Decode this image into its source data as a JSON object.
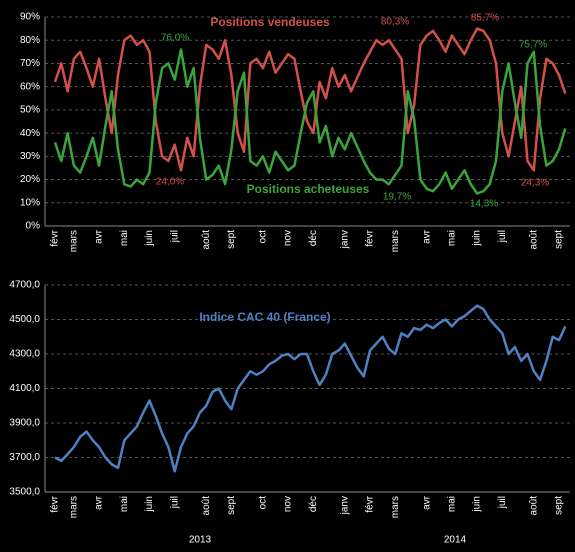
{
  "chart_data": [
    {
      "type": "line",
      "categories": [
        "févr",
        null,
        null,
        "mars",
        null,
        null,
        null,
        "avr",
        null,
        null,
        null,
        "mai",
        null,
        null,
        null,
        "juin",
        null,
        null,
        null,
        "juil",
        null,
        null,
        null,
        null,
        "août",
        null,
        null,
        null,
        "sept",
        null,
        null,
        null,
        null,
        "oct",
        null,
        null,
        null,
        "nov",
        null,
        null,
        null,
        "déc",
        null,
        null,
        null,
        null,
        "janv",
        null,
        null,
        null,
        "févr",
        null,
        null,
        null,
        "mars",
        null,
        null,
        null,
        null,
        "avr",
        null,
        null,
        null,
        "mai",
        null,
        null,
        null,
        "juin",
        null,
        null,
        null,
        "juil",
        null,
        null,
        null,
        null,
        "août",
        null,
        null,
        null,
        "sept",
        null
      ],
      "series": [
        {
          "name": "Positions vendeuses",
          "color": "#d4504a",
          "values": [
            62,
            70,
            58,
            72,
            75,
            68,
            60,
            72,
            55,
            40,
            65,
            80,
            82,
            78,
            80,
            75,
            45,
            30,
            28,
            35,
            24,
            38,
            30,
            60,
            78,
            76,
            72,
            80,
            65,
            40,
            32,
            70,
            72,
            68,
            75,
            66,
            70,
            74,
            72,
            58,
            45,
            40,
            62,
            55,
            68,
            60,
            65,
            58,
            64,
            70,
            75,
            80,
            78,
            80,
            76,
            72,
            40,
            52,
            78,
            82,
            84,
            80,
            75,
            82,
            78,
            74,
            80,
            85,
            84,
            80,
            70,
            40,
            30,
            45,
            60,
            28,
            24,
            55,
            72,
            70,
            65,
            57
          ]
        },
        {
          "name": "Positions acheteuses",
          "color": "#3aa53a",
          "values": [
            36,
            28,
            40,
            26,
            23,
            30,
            38,
            26,
            43,
            58,
            33,
            18,
            17,
            20,
            18,
            23,
            53,
            68,
            70,
            63,
            76,
            60,
            68,
            38,
            20,
            22,
            26,
            18,
            33,
            58,
            66,
            28,
            26,
            30,
            23,
            32,
            28,
            24,
            26,
            40,
            53,
            58,
            36,
            43,
            30,
            38,
            33,
            40,
            34,
            28,
            23,
            20,
            20,
            18,
            22,
            26,
            58,
            46,
            20,
            16,
            15,
            18,
            23,
            16,
            20,
            24,
            18,
            14,
            15,
            18,
            28,
            58,
            70,
            53,
            38,
            70,
            75,
            43,
            26,
            28,
            33,
            42
          ]
        }
      ],
      "ylim": [
        0,
        90
      ],
      "yticks": [
        {
          "value": 0,
          "label": "0%"
        },
        {
          "value": 10,
          "label": "10%"
        },
        {
          "value": 20,
          "label": "20%"
        },
        {
          "value": 30,
          "label": "30%"
        },
        {
          "value": 40,
          "label": "40%"
        },
        {
          "value": 50,
          "label": "50%"
        },
        {
          "value": 60,
          "label": "60%"
        },
        {
          "value": 70,
          "label": "70%"
        },
        {
          "value": 80,
          "label": "80%"
        },
        {
          "value": 90,
          "label": "90%"
        }
      ],
      "grid": true,
      "annotations": [
        "76,0%",
        "24,0%",
        "80,3%",
        "85,7%",
        "75,7%",
        "19,7%",
        "14,3%",
        "24,3%"
      ]
    },
    {
      "type": "line",
      "categories": [
        "févr",
        null,
        null,
        "mars",
        null,
        null,
        null,
        "avr",
        null,
        null,
        null,
        "mai",
        null,
        null,
        null,
        "juin",
        null,
        null,
        null,
        "juil",
        null,
        null,
        null,
        null,
        "août",
        null,
        null,
        null,
        "sept",
        null,
        null,
        null,
        null,
        "oct",
        null,
        null,
        null,
        "nov",
        null,
        null,
        null,
        "déc",
        null,
        null,
        null,
        null,
        "janv",
        null,
        null,
        null,
        "févr",
        null,
        null,
        null,
        "mars",
        null,
        null,
        null,
        null,
        "avr",
        null,
        null,
        null,
        "mai",
        null,
        null,
        null,
        "juin",
        null,
        null,
        null,
        "juil",
        null,
        null,
        null,
        null,
        "août",
        null,
        null,
        null,
        "sept",
        null
      ],
      "series": [
        {
          "name": "Indice CAC 40 (France)",
          "color": "#4f81c4",
          "values": [
            3700,
            3680,
            3720,
            3760,
            3820,
            3850,
            3800,
            3760,
            3700,
            3660,
            3640,
            3800,
            3840,
            3880,
            3960,
            4030,
            3940,
            3840,
            3760,
            3620,
            3760,
            3840,
            3880,
            3960,
            4000,
            4080,
            4100,
            4030,
            3980,
            4100,
            4150,
            4200,
            4180,
            4200,
            4240,
            4260,
            4290,
            4300,
            4270,
            4300,
            4300,
            4200,
            4120,
            4180,
            4300,
            4320,
            4360,
            4290,
            4220,
            4170,
            4320,
            4360,
            4400,
            4330,
            4300,
            4420,
            4400,
            4450,
            4440,
            4470,
            4450,
            4480,
            4500,
            4460,
            4500,
            4520,
            4550,
            4580,
            4560,
            4500,
            4460,
            4420,
            4300,
            4340,
            4260,
            4300,
            4200,
            4150,
            4260,
            4400,
            4380,
            4460
          ]
        }
      ],
      "ylim": [
        3500,
        4700
      ],
      "yticks": [
        {
          "value": 3500,
          "label": "3500,0"
        },
        {
          "value": 3700,
          "label": "3700,0"
        },
        {
          "value": 3900,
          "label": "3900,0"
        },
        {
          "value": 4100,
          "label": "4100,0"
        },
        {
          "value": 4300,
          "label": "4300,0"
        },
        {
          "value": 4500,
          "label": "4500,0"
        },
        {
          "value": 4700,
          "label": "4700,0"
        }
      ],
      "grid": true,
      "annotations": [
        "2013",
        "2014"
      ]
    }
  ]
}
